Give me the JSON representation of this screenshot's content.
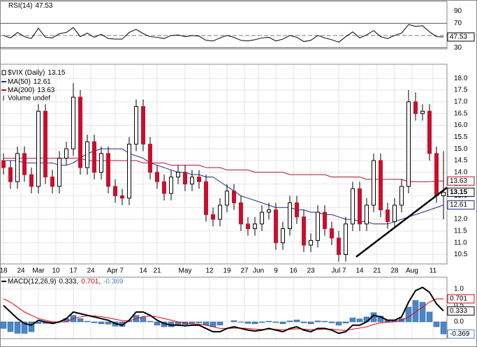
{
  "chart_data": [
    {
      "type": "line",
      "title": "RSI(14)",
      "color": "#000000",
      "values": [
        50,
        46,
        55,
        48,
        45,
        62,
        47,
        46,
        53,
        55,
        63,
        48,
        54,
        47,
        52,
        45,
        44,
        44,
        55,
        60,
        53,
        48,
        47,
        45,
        50,
        51,
        48,
        50,
        49,
        42,
        41,
        46,
        50,
        47,
        42,
        41,
        43,
        46,
        47,
        41,
        44,
        50,
        47,
        40,
        42,
        50,
        46,
        43,
        39,
        48,
        56,
        46,
        51,
        58,
        48,
        45,
        50,
        54,
        68,
        65,
        66,
        56,
        48,
        47.53
      ],
      "ylim": [
        28,
        106
      ],
      "yticks": [
        90,
        70,
        30
      ],
      "levels": [
        70,
        30
      ],
      "midline": 50
    },
    {
      "type": "candlestick",
      "title": "$VIX (Daily)",
      "x": [
        0,
        2,
        4,
        6,
        8,
        10,
        12,
        14,
        16,
        18,
        20,
        22,
        24,
        26,
        28,
        30,
        32,
        34,
        36,
        38,
        40,
        42,
        44,
        46,
        48,
        50,
        52,
        54,
        56,
        58,
        60,
        62,
        64,
        66,
        68,
        70,
        72,
        74,
        76,
        78,
        80,
        82,
        84,
        86,
        88,
        90,
        92,
        94,
        96,
        98,
        100,
        102,
        104,
        106,
        108,
        110,
        112,
        114,
        116,
        118,
        120,
        122,
        124,
        126
      ],
      "xticks": [
        {
          "value": 0,
          "label": "18"
        },
        {
          "value": 5,
          "label": "24"
        },
        {
          "value": 10,
          "label": "Mar"
        },
        {
          "value": 15,
          "label": "10"
        },
        {
          "value": 20,
          "label": "17"
        },
        {
          "value": 25,
          "label": "24"
        },
        {
          "value": 32,
          "label": "Apr 7"
        },
        {
          "value": 40,
          "label": "14"
        },
        {
          "value": 44,
          "label": "21"
        },
        {
          "value": 52,
          "label": "May"
        },
        {
          "value": 59,
          "label": "12"
        },
        {
          "value": 64,
          "label": "19"
        },
        {
          "value": 69,
          "label": "27"
        },
        {
          "value": 73,
          "label": "Jun"
        },
        {
          "value": 78,
          "label": "9"
        },
        {
          "value": 83,
          "label": "16"
        },
        {
          "value": 88,
          "label": "23"
        },
        {
          "value": 96,
          "label": "Jul 7"
        },
        {
          "value": 102,
          "label": "14"
        },
        {
          "value": 107,
          "label": "21"
        },
        {
          "value": 112,
          "label": "28"
        },
        {
          "value": 117,
          "label": "Aug"
        },
        {
          "value": 123,
          "label": "11"
        }
      ],
      "open": [
        14.5,
        14.2,
        13.6,
        14.8,
        13.9,
        13.4,
        16.6,
        13.8,
        13.4,
        14.6,
        15.0,
        17.2,
        14.2,
        15.3,
        14.0,
        14.8,
        13.4,
        13.0,
        12.9,
        15.2,
        16.8,
        15.2,
        14.0,
        13.6,
        13.1,
        13.8,
        14.0,
        13.5,
        13.8,
        13.6,
        12.2,
        12.0,
        12.6,
        13.2,
        12.7,
        11.8,
        11.6,
        11.8,
        12.3,
        12.4,
        11.0,
        11.6,
        12.7,
        12.1,
        10.9,
        11.1,
        12.3,
        11.6,
        11.2,
        10.5,
        11.8,
        13.3,
        11.8,
        12.6,
        14.5,
        12.4,
        11.9,
        12.6,
        13.4,
        17.0,
        16.5,
        16.6,
        14.8,
        13.0
      ],
      "high": [
        14.8,
        14.5,
        15.1,
        15.1,
        14.2,
        16.9,
        16.9,
        14.1,
        14.9,
        15.3,
        17.8,
        17.5,
        15.6,
        15.6,
        15.1,
        15.1,
        13.7,
        13.3,
        15.5,
        17.1,
        17.1,
        15.5,
        14.3,
        13.9,
        14.1,
        14.3,
        14.3,
        14.1,
        14.1,
        13.9,
        12.5,
        12.9,
        13.5,
        13.5,
        13.0,
        12.1,
        12.1,
        12.6,
        12.7,
        12.7,
        11.9,
        13.0,
        13.0,
        12.4,
        11.4,
        12.6,
        12.6,
        11.9,
        11.5,
        12.1,
        13.6,
        13.6,
        12.9,
        14.8,
        14.8,
        12.7,
        12.9,
        13.7,
        17.5,
        17.4,
        16.9,
        16.9,
        15.1,
        14.9
      ],
      "low": [
        13.9,
        13.3,
        13.3,
        13.6,
        13.1,
        13.1,
        13.5,
        13.1,
        13.1,
        14.3,
        14.7,
        13.9,
        13.9,
        13.7,
        13.7,
        13.1,
        12.7,
        12.6,
        12.6,
        14.9,
        14.9,
        13.7,
        13.3,
        12.8,
        12.8,
        13.5,
        13.2,
        13.2,
        13.3,
        11.9,
        11.7,
        11.7,
        12.3,
        12.4,
        11.5,
        11.3,
        11.3,
        11.5,
        12.0,
        10.7,
        10.7,
        11.3,
        11.8,
        10.6,
        10.6,
        10.8,
        11.3,
        10.9,
        10.2,
        10.2,
        11.5,
        11.5,
        11.5,
        12.3,
        12.1,
        11.6,
        11.6,
        12.3,
        13.1,
        16.2,
        16.2,
        14.5,
        12.7,
        12.0
      ],
      "close": [
        14.2,
        13.6,
        14.8,
        13.9,
        13.4,
        16.6,
        13.8,
        13.4,
        14.6,
        15.0,
        17.2,
        14.2,
        15.3,
        14.0,
        14.8,
        13.4,
        13.0,
        12.9,
        15.2,
        16.8,
        15.2,
        14.0,
        13.6,
        13.1,
        13.8,
        14.0,
        13.5,
        13.8,
        13.6,
        12.2,
        12.0,
        12.6,
        13.2,
        12.7,
        11.8,
        11.6,
        11.8,
        12.3,
        12.4,
        11.0,
        11.6,
        12.7,
        12.1,
        10.9,
        11.1,
        12.3,
        11.6,
        11.2,
        10.5,
        11.8,
        13.3,
        11.8,
        12.6,
        14.5,
        12.4,
        11.9,
        12.6,
        13.4,
        17.0,
        16.5,
        16.6,
        14.8,
        13.0,
        13.15
      ],
      "up_color": "#000000",
      "down_color": "#c8102e",
      "series": [
        {
          "name": "MA(50)",
          "color": "#1f2a8a",
          "values": [
            14.5,
            14.5,
            14.5,
            14.4,
            14.4,
            14.4,
            14.4,
            14.4,
            14.3,
            14.3,
            14.4,
            14.6,
            14.8,
            14.9,
            15.0,
            15.0,
            15.0,
            15.0,
            14.8,
            14.7,
            14.6,
            14.4,
            14.3,
            14.2,
            14.1,
            14.0,
            14.0,
            13.9,
            13.9,
            13.8,
            13.8,
            13.6,
            13.4,
            13.2,
            13.0,
            12.9,
            12.8,
            12.7,
            12.6,
            12.5,
            12.5,
            12.5,
            12.4,
            12.4,
            12.3,
            12.3,
            12.2,
            12.2,
            12.1,
            12.0,
            12.0,
            11.9,
            11.9,
            11.8,
            11.8,
            11.8,
            11.9,
            12.0,
            12.1,
            12.2,
            12.3,
            12.4,
            12.5,
            12.61
          ]
        },
        {
          "name": "MA(200)",
          "color": "#b0102a",
          "values": [
            14.6,
            14.6,
            14.6,
            14.6,
            14.6,
            14.6,
            14.6,
            14.6,
            14.6,
            14.6,
            14.6,
            14.6,
            14.5,
            14.5,
            14.5,
            14.5,
            14.5,
            14.5,
            14.5,
            14.5,
            14.4,
            14.4,
            14.4,
            14.4,
            14.3,
            14.3,
            14.3,
            14.3,
            14.3,
            14.2,
            14.2,
            14.2,
            14.1,
            14.1,
            14.1,
            14.1,
            14.0,
            14.0,
            14.0,
            14.0,
            14.0,
            13.9,
            13.9,
            13.9,
            13.9,
            13.9,
            13.9,
            13.8,
            13.8,
            13.8,
            13.8,
            13.8,
            13.7,
            13.7,
            13.7,
            13.7,
            13.7,
            13.7,
            13.6,
            13.6,
            13.6,
            13.6,
            13.63,
            13.63
          ]
        }
      ],
      "volume_legend": "Volume undef",
      "trendline": {
        "x": [
          101,
          127
        ],
        "y": [
          10.4,
          13.35
        ]
      },
      "ylim": [
        10.1,
        18.6
      ],
      "yticks": [
        10.5,
        {
          "value": 11,
          "label": "11.0"
        },
        11.5,
        {
          "value": 12,
          "label": "12.0"
        },
        12.5,
        {
          "value": 13,
          "label": "13.0"
        },
        13.5,
        {
          "value": 14,
          "label": "14.0"
        },
        14.5,
        {
          "value": 15,
          "label": "15.0"
        },
        15.5,
        {
          "value": 16,
          "label": "16.0"
        },
        16.5,
        {
          "value": 17,
          "label": "17.0"
        },
        17.5,
        {
          "value": 18,
          "label": "18.0"
        }
      ],
      "grid": true
    },
    {
      "type": "macd",
      "title": "MACD(12,26,9)",
      "separator": ",",
      "macd": {
        "color": "#000000",
        "values": [
          0.5,
          0.3,
          0.1,
          -0.05,
          -0.1,
          0.05,
          0.0,
          -0.05,
          0.0,
          0.1,
          0.3,
          0.25,
          0.2,
          0.15,
          0.1,
          0.05,
          -0.05,
          -0.1,
          0.05,
          0.3,
          0.3,
          0.2,
          0.05,
          -0.05,
          -0.1,
          -0.1,
          -0.12,
          -0.1,
          -0.1,
          -0.2,
          -0.3,
          -0.3,
          -0.2,
          -0.15,
          -0.2,
          -0.25,
          -0.28,
          -0.25,
          -0.2,
          -0.25,
          -0.3,
          -0.2,
          -0.15,
          -0.25,
          -0.3,
          -0.2,
          -0.2,
          -0.25,
          -0.35,
          -0.3,
          -0.1,
          -0.1,
          0.0,
          0.2,
          0.15,
          0.05,
          0.05,
          0.15,
          0.6,
          0.95,
          1.05,
          0.9,
          0.55,
          0.333
        ]
      },
      "signal": {
        "color": "#e00000",
        "values": [
          0.7,
          0.6,
          0.45,
          0.3,
          0.2,
          0.1,
          0.05,
          0.0,
          0.0,
          0.0,
          0.1,
          0.15,
          0.18,
          0.18,
          0.16,
          0.12,
          0.08,
          0.04,
          0.03,
          0.1,
          0.16,
          0.18,
          0.15,
          0.1,
          0.05,
          0.0,
          -0.04,
          -0.06,
          -0.07,
          -0.1,
          -0.15,
          -0.2,
          -0.2,
          -0.19,
          -0.19,
          -0.2,
          -0.22,
          -0.23,
          -0.22,
          -0.23,
          -0.24,
          -0.23,
          -0.21,
          -0.22,
          -0.24,
          -0.23,
          -0.22,
          -0.22,
          -0.25,
          -0.26,
          -0.22,
          -0.19,
          -0.15,
          -0.08,
          -0.03,
          -0.01,
          0.0,
          0.05,
          0.15,
          0.3,
          0.45,
          0.6,
          0.7,
          0.701
        ]
      },
      "histogram": {
        "color": "#4a86c8",
        "values": [
          -0.2,
          -0.3,
          -0.35,
          -0.35,
          -0.3,
          -0.05,
          -0.05,
          -0.05,
          0,
          0.1,
          0.2,
          0.1,
          0.02,
          -0.03,
          -0.06,
          -0.07,
          -0.13,
          -0.14,
          0.02,
          0.2,
          0.14,
          0.02,
          -0.1,
          -0.15,
          -0.15,
          -0.1,
          -0.08,
          -0.04,
          -0.03,
          -0.1,
          -0.15,
          -0.1,
          0,
          0.04,
          -0.01,
          -0.05,
          -0.06,
          -0.02,
          0.02,
          -0.02,
          -0.06,
          0.03,
          0.06,
          -0.03,
          -0.06,
          0.03,
          0.02,
          -0.03,
          -0.1,
          -0.04,
          0.12,
          0.09,
          0.15,
          0.28,
          0.18,
          0.06,
          0.05,
          0.1,
          0.45,
          0.65,
          0.6,
          0.3,
          -0.15,
          -0.369
        ]
      },
      "ylim": [
        -0.51,
        1.36
      ],
      "yticks": [
        {
          "value": 1,
          "label": "1.0"
        },
        0.5,
        {
          "value": 0,
          "label": "0.0"
        }
      ]
    }
  ]
}
